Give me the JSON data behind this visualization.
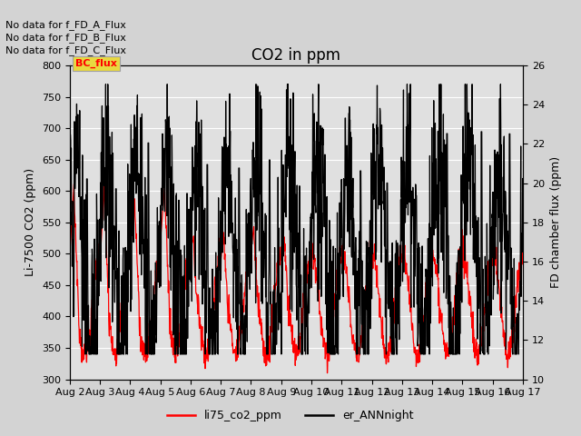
{
  "title": "CO2 in ppm",
  "ylabel_left": "Li-7500 CO2 (ppm)",
  "ylabel_right": "FD chamber flux (ppm)",
  "ylim_left": [
    300,
    800
  ],
  "ylim_right": [
    10,
    26
  ],
  "yticks_left": [
    300,
    350,
    400,
    450,
    500,
    550,
    600,
    650,
    700,
    750,
    800
  ],
  "yticks_right": [
    10,
    12,
    14,
    16,
    18,
    20,
    22,
    24,
    26
  ],
  "xtick_labels": [
    "Aug 2",
    "Aug 3",
    "Aug 4",
    "Aug 5",
    "Aug 6",
    "Aug 7",
    "Aug 8",
    "Aug 9",
    "Aug 10",
    "Aug 11",
    "Aug 12",
    "Aug 13",
    "Aug 14",
    "Aug 15",
    "Aug 16",
    "Aug 17"
  ],
  "legend_entries": [
    "li75_co2_ppm",
    "er_ANNnight"
  ],
  "legend_colors": [
    "red",
    "black"
  ],
  "no_data_texts": [
    "No data for f_FD_A_Flux",
    "No data for f_FD_B_Flux",
    "No data for f_FD_C_Flux"
  ],
  "bc_flux_label": "BC_flux",
  "background_color": "#d3d3d3",
  "plot_bg_color": "#e0e0e0",
  "grid_color": "#ffffff",
  "title_fontsize": 12,
  "label_fontsize": 9,
  "tick_fontsize": 8,
  "annot_fontsize": 8
}
